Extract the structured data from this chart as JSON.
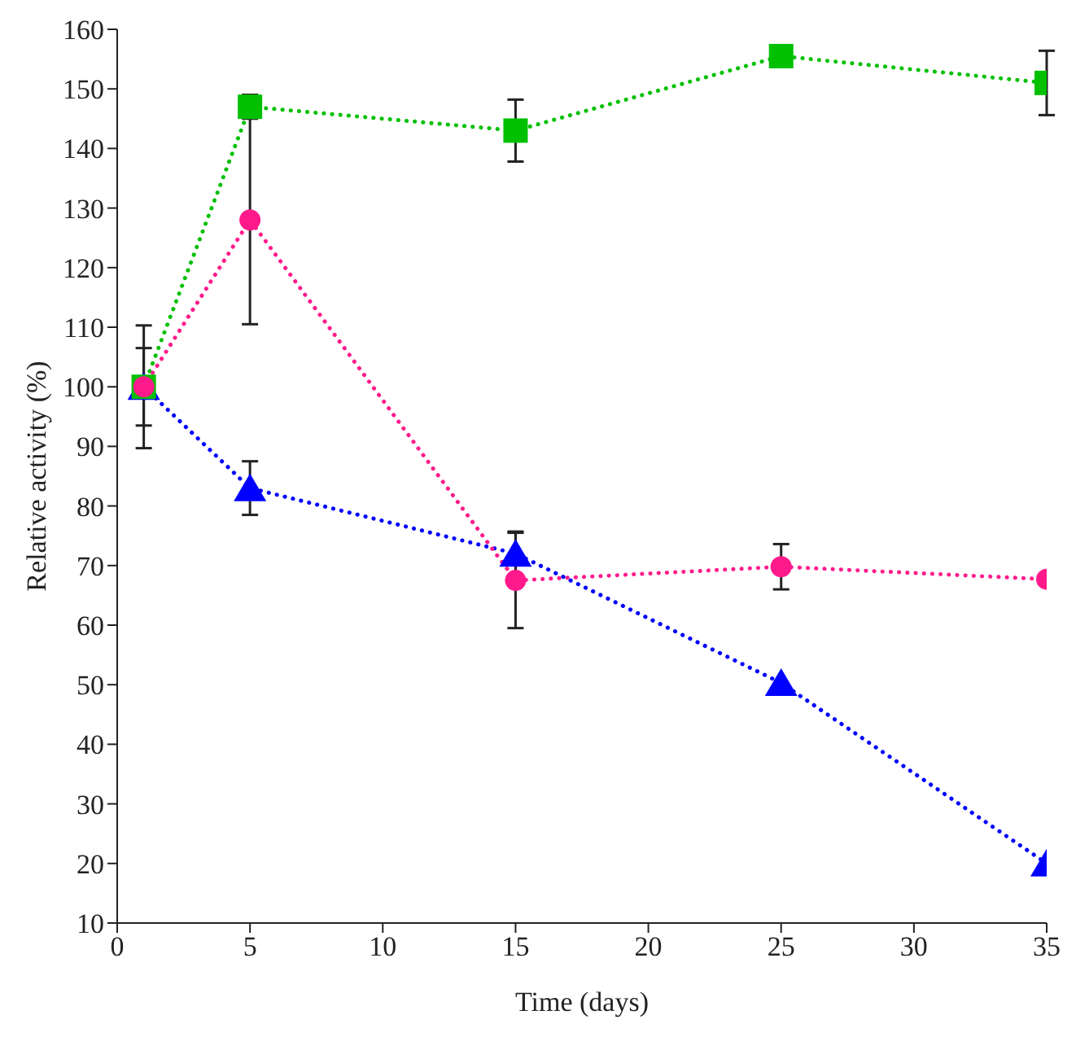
{
  "chart_data": {
    "type": "line",
    "xlabel": "Time (days)",
    "ylabel": "Relative activity (%)",
    "x": [
      1,
      5,
      15,
      25,
      35
    ],
    "xlim": [
      0,
      35
    ],
    "xticks": [
      0,
      5,
      10,
      15,
      20,
      25,
      30,
      35
    ],
    "ylim": [
      10,
      160
    ],
    "yticks": [
      10,
      20,
      30,
      40,
      50,
      60,
      70,
      80,
      90,
      100,
      110,
      120,
      130,
      140,
      150,
      160
    ],
    "grid": false,
    "legend": false,
    "line_style": "dotted",
    "series": [
      {
        "color": "#0000ff",
        "marker": "triangle",
        "values": [
          100,
          83,
          72,
          50.3,
          20
        ],
        "errors": [
          null,
          4.5,
          3.7,
          null,
          null
        ]
      },
      {
        "color": "#00c000",
        "marker": "square",
        "values": [
          100,
          147,
          143,
          155.5,
          151
        ],
        "errors": [
          6.5,
          2,
          5.2,
          null,
          5.4
        ]
      },
      {
        "color": "#ff1a8c",
        "marker": "circle",
        "values": [
          100,
          128,
          67.5,
          69.8,
          67.7
        ],
        "errors": [
          10.3,
          17.5,
          8,
          3.8,
          null
        ]
      }
    ]
  }
}
